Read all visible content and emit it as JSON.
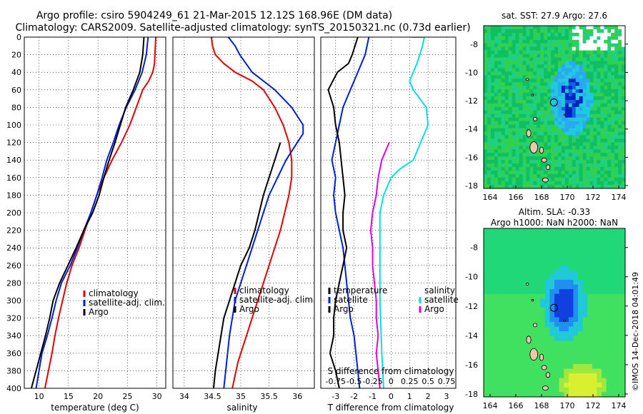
{
  "title": {
    "line1": "Argo profile: csiro 5904249_61 21-Mar-2015 12.12S 168.96E (DM data)",
    "line2": "Climatology: CARS2009. Satellite-adjusted climatology: synTS_20150321.nc (0.73d earlier)"
  },
  "depth_ticks": [
    0,
    20,
    40,
    60,
    80,
    100,
    120,
    140,
    160,
    180,
    200,
    220,
    240,
    260,
    280,
    300,
    320,
    340,
    360,
    380,
    400
  ],
  "chart_data": [
    {
      "type": "line",
      "id": "temperature",
      "xlabel": "temperature (deg C)",
      "ylabel": "depth",
      "xlim": [
        7.5,
        31.5
      ],
      "ylim": [
        400,
        0
      ],
      "xticks": [
        10,
        15,
        20,
        25,
        30
      ],
      "xtick_labels": [
        "10",
        "15",
        "20",
        "25",
        "30"
      ],
      "legend": [
        "climatology",
        "satellite-adj. clim.",
        "Argo"
      ],
      "series": [
        {
          "name": "climatology",
          "color": "#e00000",
          "points": [
            [
              29.8,
              0
            ],
            [
              29.6,
              30
            ],
            [
              29.3,
              40
            ],
            [
              28.6,
              50
            ],
            [
              27.6,
              60
            ],
            [
              26.5,
              80
            ],
            [
              25.4,
              100
            ],
            [
              24.0,
              120
            ],
            [
              22.4,
              140
            ],
            [
              21.0,
              160
            ],
            [
              19.8,
              180
            ],
            [
              18.8,
              200
            ],
            [
              17.8,
              220
            ],
            [
              16.8,
              240
            ],
            [
              15.6,
              260
            ],
            [
              14.7,
              280
            ],
            [
              14.0,
              300
            ],
            [
              13.3,
              320
            ],
            [
              12.7,
              340
            ],
            [
              12.2,
              360
            ],
            [
              11.6,
              380
            ],
            [
              11.0,
              400
            ]
          ]
        },
        {
          "name": "satellite-adj. clim.",
          "color": "#0020d0",
          "points": [
            [
              28.5,
              0
            ],
            [
              28.2,
              20
            ],
            [
              27.5,
              40
            ],
            [
              26.3,
              60
            ],
            [
              24.8,
              80
            ],
            [
              23.6,
              100
            ],
            [
              22.6,
              120
            ],
            [
              21.5,
              140
            ],
            [
              20.7,
              160
            ],
            [
              19.8,
              180
            ],
            [
              18.8,
              200
            ],
            [
              17.6,
              220
            ],
            [
              16.5,
              240
            ],
            [
              15.3,
              260
            ],
            [
              13.8,
              280
            ],
            [
              12.9,
              300
            ],
            [
              12.2,
              320
            ],
            [
              11.4,
              340
            ],
            [
              10.5,
              360
            ],
            [
              10.0,
              380
            ],
            [
              9.5,
              400
            ]
          ]
        },
        {
          "name": "Argo",
          "color": "#000000",
          "points": [
            [
              27.8,
              0
            ],
            [
              27.6,
              20
            ],
            [
              27.1,
              40
            ],
            [
              26.0,
              60
            ],
            [
              24.7,
              80
            ],
            [
              23.8,
              100
            ],
            [
              22.9,
              120
            ],
            [
              21.9,
              140
            ],
            [
              21.0,
              160
            ],
            [
              20.2,
              180
            ],
            [
              19.1,
              200
            ],
            [
              17.6,
              220
            ],
            [
              16.3,
              240
            ],
            [
              14.9,
              260
            ],
            [
              13.5,
              280
            ],
            [
              12.4,
              300
            ],
            [
              11.8,
              320
            ],
            [
              11.1,
              340
            ],
            [
              10.3,
              360
            ],
            [
              9.5,
              380
            ],
            [
              8.7,
              400
            ]
          ]
        }
      ]
    },
    {
      "type": "line",
      "id": "salinity",
      "xlabel": "salinity",
      "ylabel": "depth",
      "xlim": [
        33.8,
        36.3
      ],
      "ylim": [
        400,
        0
      ],
      "xticks": [
        34,
        34.5,
        35,
        35.5,
        36
      ],
      "xtick_labels": [
        "34",
        "34.5",
        "35",
        "35.5",
        "36"
      ],
      "legend": [
        "climatology",
        "satellite-adj. clim.",
        "Argo"
      ],
      "series": [
        {
          "name": "climatology",
          "color": "#e00000",
          "points": [
            [
              34.48,
              0
            ],
            [
              34.5,
              10
            ],
            [
              34.55,
              20
            ],
            [
              34.7,
              30
            ],
            [
              34.9,
              40
            ],
            [
              35.2,
              50
            ],
            [
              35.4,
              60
            ],
            [
              35.6,
              80
            ],
            [
              35.75,
              100
            ],
            [
              35.85,
              120
            ],
            [
              35.9,
              140
            ],
            [
              35.9,
              160
            ],
            [
              35.85,
              180
            ],
            [
              35.7,
              220
            ],
            [
              35.5,
              260
            ],
            [
              35.3,
              300
            ],
            [
              35.1,
              340
            ],
            [
              34.95,
              370
            ],
            [
              34.85,
              400
            ]
          ]
        },
        {
          "name": "satellite-adj. clim.",
          "color": "#0020d0",
          "points": [
            [
              34.78,
              0
            ],
            [
              34.9,
              10
            ],
            [
              34.98,
              20
            ],
            [
              35.2,
              40
            ],
            [
              35.6,
              60
            ],
            [
              35.9,
              80
            ],
            [
              36.1,
              100
            ],
            [
              36.1,
              110
            ],
            [
              36.0,
              120
            ],
            [
              35.8,
              140
            ],
            [
              35.65,
              160
            ],
            [
              35.5,
              180
            ],
            [
              35.3,
              220
            ],
            [
              35.1,
              260
            ],
            [
              34.9,
              300
            ],
            [
              34.8,
              340
            ],
            [
              34.7,
              400
            ]
          ]
        },
        {
          "name": "Argo",
          "color": "#000000",
          "points": [
            [
              35.7,
              120
            ],
            [
              35.6,
              140
            ],
            [
              35.5,
              160
            ],
            [
              35.4,
              180
            ],
            [
              35.25,
              220
            ],
            [
              35.15,
              240
            ],
            [
              35.0,
              260
            ],
            [
              34.9,
              280
            ],
            [
              34.8,
              300
            ],
            [
              34.7,
              320
            ],
            [
              34.65,
              340
            ],
            [
              34.6,
              360
            ],
            [
              34.55,
              380
            ],
            [
              34.52,
              400
            ]
          ]
        }
      ]
    },
    {
      "type": "line",
      "id": "difference",
      "xlabel": "T difference from climatology",
      "xlabel2": "S difference from climatology",
      "ylabel": "depth",
      "xlim": [
        -3.8,
        3.5
      ],
      "ylim": [
        400,
        0
      ],
      "xticks": [
        -3,
        -2,
        -1,
        0,
        1,
        2,
        3
      ],
      "xtick_labels": [
        "-3",
        "-2",
        "-1",
        "0",
        "1",
        "2",
        "3"
      ],
      "xticks2": [
        -3,
        -2,
        -1,
        0,
        1,
        2,
        3
      ],
      "xtick_labels2": [
        "-0.75",
        "-0.5",
        "-0.25",
        "0",
        "0.25",
        "0.5",
        "0.75"
      ],
      "legend_temperature": [
        "temperature",
        "satellite",
        "Argo"
      ],
      "legend_salinity": [
        "salinity",
        "satellite",
        "Argo"
      ],
      "series": [
        {
          "name": "temperature satellite",
          "color": "#0020d0",
          "points": [
            [
              -1.2,
              0
            ],
            [
              -1.4,
              20
            ],
            [
              -1.8,
              40
            ],
            [
              -2.2,
              60
            ],
            [
              -2.6,
              80
            ],
            [
              -2.8,
              100
            ],
            [
              -3.0,
              120
            ],
            [
              -3.2,
              140
            ],
            [
              -3.0,
              160
            ],
            [
              -3.1,
              180
            ],
            [
              -3.0,
              200
            ],
            [
              -2.8,
              220
            ],
            [
              -2.6,
              240
            ],
            [
              -2.5,
              260
            ],
            [
              -2.4,
              280
            ],
            [
              -2.3,
              300
            ],
            [
              -2.2,
              320
            ],
            [
              -2.0,
              340
            ],
            [
              -1.9,
              360
            ],
            [
              -1.8,
              380
            ],
            [
              -1.7,
              400
            ]
          ]
        },
        {
          "name": "temperature Argo",
          "color": "#000000",
          "points": [
            [
              -1.8,
              0
            ],
            [
              -2.1,
              20
            ],
            [
              -2.3,
              30
            ],
            [
              -2.9,
              40
            ],
            [
              -3.4,
              60
            ],
            [
              -3.1,
              80
            ],
            [
              -3.0,
              100
            ],
            [
              -2.8,
              120
            ],
            [
              -2.7,
              140
            ],
            [
              -2.6,
              160
            ],
            [
              -2.5,
              180
            ],
            [
              -2.6,
              200
            ],
            [
              -2.6,
              220
            ],
            [
              -2.4,
              240
            ],
            [
              -2.6,
              260
            ],
            [
              -2.8,
              280
            ],
            [
              -3.0,
              300
            ],
            [
              -3.1,
              320
            ],
            [
              -3.1,
              340
            ],
            [
              -3.3,
              360
            ],
            [
              -3.0,
              380
            ],
            [
              -2.8,
              400
            ]
          ]
        },
        {
          "name": "salinity satellite",
          "color": "#00e0e0",
          "points": [
            [
              1.1,
              0
            ],
            [
              1.8,
              0
            ],
            [
              1.7,
              10
            ],
            [
              1.4,
              30
            ],
            [
              1.0,
              50
            ],
            [
              1.2,
              60
            ],
            [
              1.9,
              80
            ],
            [
              2.0,
              100
            ],
            [
              1.6,
              120
            ],
            [
              1.2,
              140
            ],
            [
              0.5,
              150
            ],
            [
              0.0,
              160
            ],
            [
              -0.4,
              180
            ],
            [
              -0.6,
              200
            ],
            [
              -0.6,
              240
            ],
            [
              -0.6,
              300
            ],
            [
              -0.5,
              360
            ],
            [
              -0.4,
              400
            ]
          ]
        },
        {
          "name": "salinity Argo",
          "color": "#e000e0",
          "points": [
            [
              -0.1,
              120
            ],
            [
              -0.5,
              140
            ],
            [
              -0.7,
              160
            ],
            [
              -0.8,
              180
            ],
            [
              -1.0,
              200
            ],
            [
              -1.1,
              220
            ],
            [
              -1.0,
              240
            ],
            [
              -1.0,
              260
            ],
            [
              -0.9,
              280
            ],
            [
              -0.8,
              300
            ],
            [
              -0.8,
              320
            ],
            [
              -0.7,
              340
            ],
            [
              -0.8,
              360
            ],
            [
              -0.7,
              380
            ],
            [
              -0.6,
              400
            ]
          ]
        }
      ]
    },
    {
      "type": "heatmap",
      "id": "sst_map",
      "title": "sat. SST: 27.9 Argo: 27.6",
      "xlim": [
        163.5,
        174.5
      ],
      "ylim": [
        -18.2,
        -6.7
      ],
      "xticks": [
        164,
        166,
        168,
        170,
        172,
        174
      ],
      "yticks": [
        -8,
        -10,
        -12,
        -14,
        -16,
        -18
      ],
      "argo_position": [
        168.96,
        -12.12
      ]
    },
    {
      "type": "heatmap",
      "id": "sla_map",
      "title": "Altim. SLA: -0.33",
      "subtitle": "Argo h1000: NaN h2000: NaN",
      "xlim": [
        163.5,
        174.5
      ],
      "ylim": [
        -18.2,
        -6.7
      ],
      "xticks": [
        164,
        166,
        168,
        170,
        172,
        174
      ],
      "yticks": [
        -8,
        -10,
        -12,
        -14,
        -16,
        -18
      ],
      "argo_position": [
        168.96,
        -12.12
      ]
    }
  ],
  "credit": "©IMOS 14-Dec-2018 04:01:49"
}
